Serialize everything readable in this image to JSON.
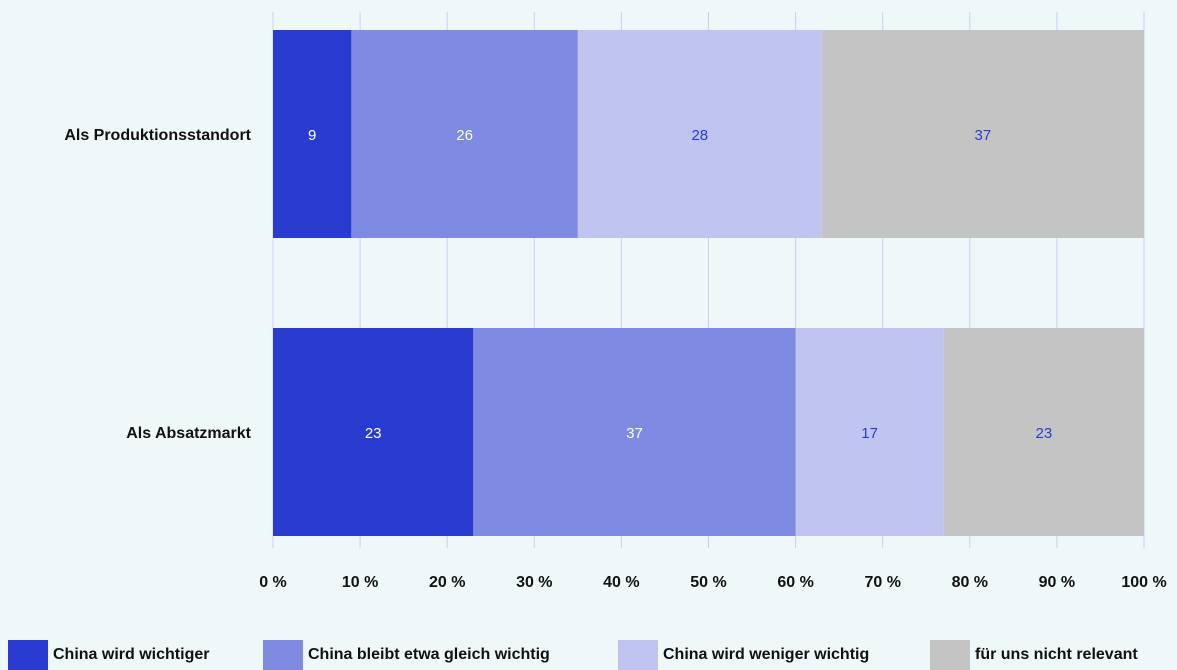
{
  "chart_data": {
    "type": "bar",
    "orientation": "horizontal",
    "stacked": true,
    "categories": [
      "Als Produktionsstandort",
      "Als Absatzmarkt"
    ],
    "series": [
      {
        "name": "China wird wichtiger",
        "values": [
          9,
          23
        ],
        "color": "#2a3cd0",
        "label_color": "#ffffff"
      },
      {
        "name": "China bleibt etwa gleich wichtig",
        "values": [
          26,
          37
        ],
        "color": "#7f8ae3",
        "label_color": "#ffffff"
      },
      {
        "name": "China wird weniger wichtig",
        "values": [
          28,
          17
        ],
        "color": "#c0c4f1",
        "label_color": "#2a3cd0"
      },
      {
        "name": "für uns nicht relevant",
        "values": [
          37,
          23
        ],
        "color": "#c4c4c4",
        "label_color": "#2a3cd0"
      }
    ],
    "xlim": [
      0,
      100
    ],
    "xticks": [
      0,
      10,
      20,
      30,
      40,
      50,
      60,
      70,
      80,
      90,
      100
    ],
    "xtick_labels": [
      "0 %",
      "10 %",
      "20 %",
      "30 %",
      "40 %",
      "50 %",
      "60 %",
      "70 %",
      "80 %",
      "90 %",
      "100 %"
    ],
    "grid": true,
    "grid_color": "#c8d0f2",
    "legend_position": "bottom",
    "title": "",
    "xlabel": "",
    "ylabel": ""
  }
}
